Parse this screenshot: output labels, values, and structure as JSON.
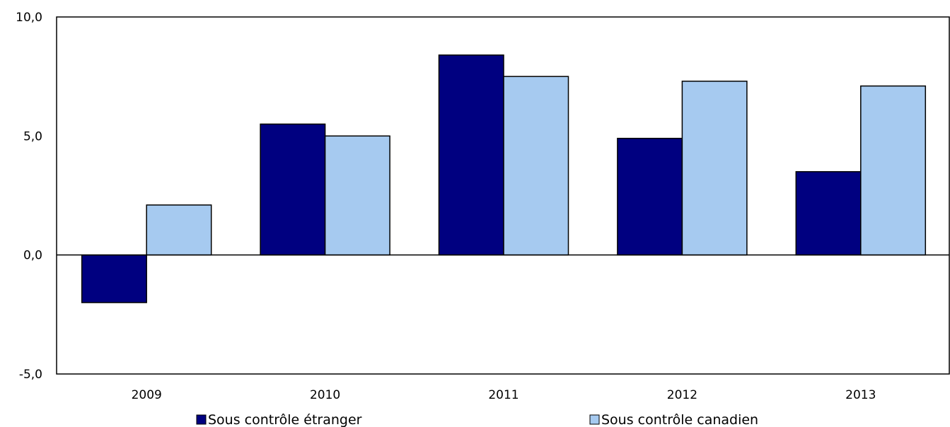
{
  "chart_data": {
    "type": "bar",
    "categories": [
      "2009",
      "2010",
      "2011",
      "2012",
      "2013"
    ],
    "series": [
      {
        "name": "Sous contrôle étranger",
        "values": [
          -2.0,
          5.5,
          8.4,
          4.9,
          3.5
        ],
        "color": "#000080"
      },
      {
        "name": "Sous contrôle canadien",
        "values": [
          2.1,
          5.0,
          7.5,
          7.3,
          7.1
        ],
        "color": "#a6caf0"
      }
    ],
    "ylim": [
      -5,
      10
    ],
    "yticks": [
      "-5,0",
      "0,0",
      "5,0",
      "10,0"
    ],
    "grid": false,
    "legend": "bottom"
  }
}
